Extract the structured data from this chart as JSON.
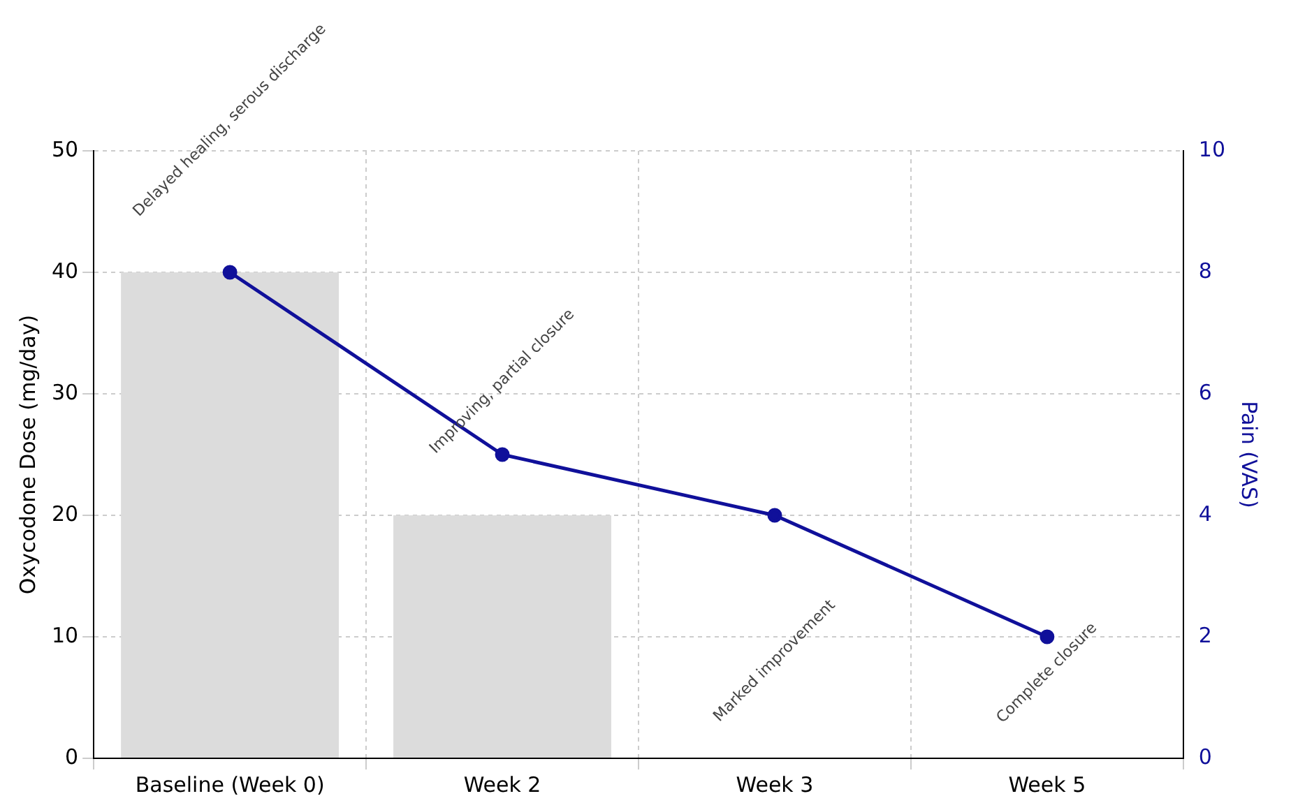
{
  "chart_data": {
    "type": "bar",
    "categories": [
      "Baseline (Week 0)",
      "Week 2",
      "Week 3",
      "Week 5"
    ],
    "series": [
      {
        "color": "#dcdcdc",
        "values": [
          40,
          20,
          null,
          null
        ]
      },
      {
        "type": "line",
        "axis": "y2",
        "color": "#10109a",
        "values": [
          8,
          5,
          4,
          2
        ]
      }
    ],
    "ylabel": "Oxycodone Dose (mg/day)",
    "y2label": "Pain (VAS)",
    "ylim": [
      0,
      50
    ],
    "yticks": [
      0,
      10,
      20,
      30,
      40,
      50
    ],
    "y2lim": [
      0,
      10
    ],
    "y2ticks": [
      0,
      2,
      4,
      6,
      8,
      10
    ],
    "grid": true,
    "legend": false,
    "marker": "circle",
    "line_style": "solid",
    "annotations": [
      "Delayed healing, serous discharge",
      "Improving, partial closure",
      "Marked improvement",
      "Complete closure"
    ]
  }
}
